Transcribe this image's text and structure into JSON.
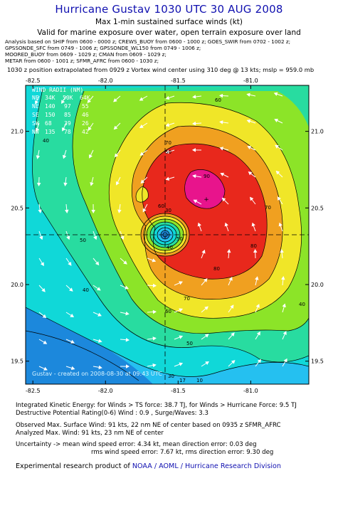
{
  "header": {
    "title": "Hurricane Gustav 1030 UTC 30 AUG 2008",
    "subtitle": "Max 1-min sustained surface winds (kt)",
    "exposure": "Valid for marine exposure over water, open terrain exposure over land",
    "analysis_lines": [
      "Analysis based on  SHIP from 0600 - 0000 z;  CREWS_BUOY from 0600 - 1000 z;  GOES_SWIR from 0702 - 1002 z;",
      "GPSSONDE_SFC from 0749 - 1006 z;  GPSSONDE_WL150 from 0749 - 1006 z;",
      "MOORED_BUOY from 0609 - 1029 z;  CMAN from 0609 - 1029 z;",
      "METAR from 0600 - 1001 z;  SFMR_AFRC from 0600 - 1030 z;"
    ],
    "extrapolation": "1030 z position extrapolated from 0929 z Vortex wind center using 310 deg @ 13 kts; mslp = 959.0 mb"
  },
  "map": {
    "lon_ticks": [
      "-82.5",
      "-82.0",
      "-81.5",
      "-81.0"
    ],
    "lat_ticks": [
      "21.0",
      "20.5",
      "20.0",
      "19.5"
    ],
    "lon_values": [
      -82.5,
      -82.0,
      -81.5,
      -81.0
    ],
    "lat_values": [
      21.0,
      20.5,
      20.0,
      19.5
    ],
    "center_lon": -81.55,
    "center_lat": 20.35,
    "watermark": "Gustav  -  created  on  2008-08-30  at  09:43  UTC",
    "contour_labels": [
      "60",
      "70",
      "50",
      "40",
      "70",
      "80",
      "50",
      "60",
      "50",
      "40",
      "30",
      "40",
      "50",
      "80",
      "70",
      "60",
      "40",
      "90",
      "30",
      "17",
      "10"
    ],
    "colors": {
      "lt30": "#25c0f0",
      "c30_40": "#10d8d8",
      "c40_50": "#28dca0",
      "c50_60": "#8ce428",
      "c60_70": "#f0e628",
      "c70_80": "#f0a020",
      "c80_90": "#e8281c",
      "ge90": "#e8148c",
      "land": "#1c88dc"
    }
  },
  "wind_radii": {
    "headers": [
      "WIND RADII (NM)",
      "34K",
      "50K",
      "64K"
    ],
    "rows": [
      {
        "dir": "NE",
        "r34": "140",
        "r50": "97",
        "r64": "55"
      },
      {
        "dir": "SE",
        "r34": "150",
        "r50": "85",
        "r64": "46"
      },
      {
        "dir": "SW",
        "r34": "68",
        "r50": "39",
        "r64": "26"
      },
      {
        "dir": "NW",
        "r34": "135",
        "r50": "78",
        "r64": "42"
      }
    ]
  },
  "stats": {
    "ike": "Integrated Kinetic Energy:  for Winds > TS force: 38.7 TJ,  for Winds > Hurricane Force: 9.5 TJ",
    "dpr": "Destructive Potential Rating(0-6)   Wind : 0.9 , Surge/Waves: 3.3",
    "obs_max": "Observed Max. Surface Wind: 91 kts, 22 nm NE of center based on 0935 z SFMR_AFRC",
    "ana_max": "Analyzed Max. Wind: 91 kts, 23 nm NE of center",
    "unc1": "Uncertainty -> mean wind speed error: 4.34 kt,   mean direction error: 0.03 deg",
    "unc2": "rms wind speed error: 7.67 kt,   rms direction error: 9.30 deg"
  },
  "footer": {
    "prefix": "Experimental research product of ",
    "link": "NOAA / AOML / Hurricane Research Division"
  }
}
